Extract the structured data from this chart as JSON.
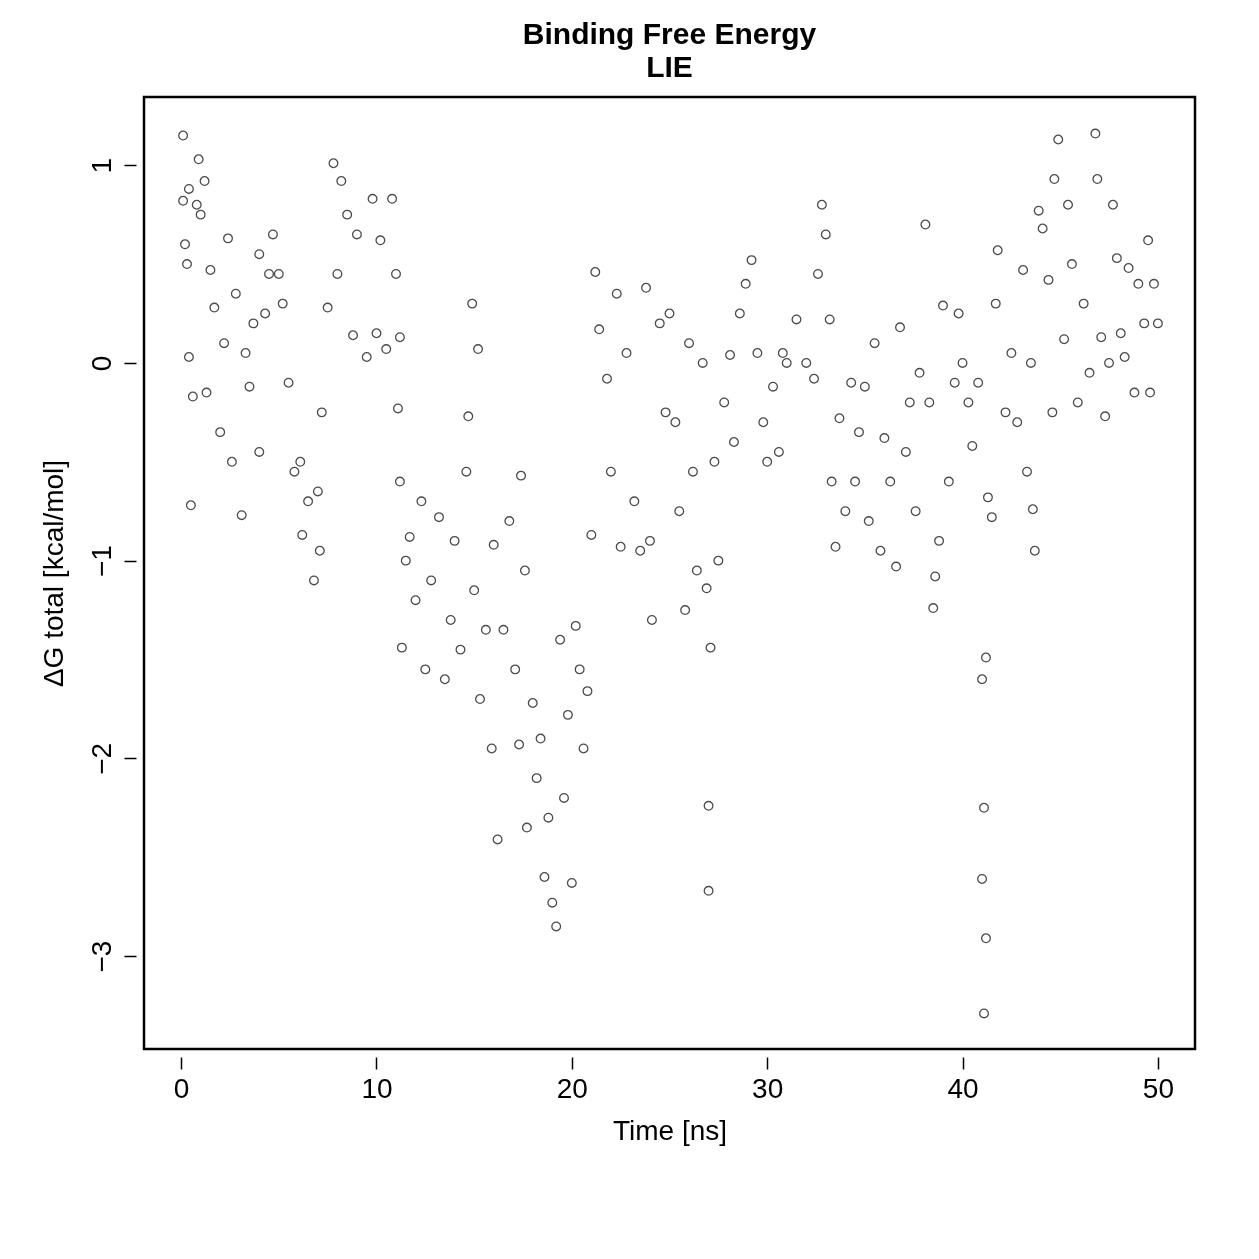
{
  "chart_data": {
    "type": "scatter",
    "title": "Binding Free Energy",
    "subtitle": "LIE",
    "xlabel": "Time [ns]",
    "ylabel": "ΔG total [kcal/mol]",
    "xlim": [
      -1.9,
      51.9
    ],
    "ylim": [
      -3.47,
      1.345
    ],
    "xticks": [
      0,
      10,
      20,
      30,
      40,
      50
    ],
    "yticks": [
      -3,
      -2,
      -1,
      0,
      1
    ],
    "grid": false,
    "marker": "circle",
    "series": [
      {
        "color": "#000000",
        "x": [
          0.1,
          0.1,
          0.2,
          0.3,
          0.4,
          0.4,
          0.5,
          0.6,
          0.8,
          0.9,
          1.0,
          1.2,
          1.3,
          1.5,
          1.7,
          2.0,
          2.2,
          2.4,
          2.6,
          2.8,
          3.1,
          3.3,
          3.5,
          3.7,
          4.0,
          4.0,
          4.3,
          4.5,
          4.7,
          5.0,
          5.2,
          5.5,
          5.8,
          6.1,
          6.2,
          6.5,
          6.8,
          7.0,
          7.1,
          7.2,
          7.5,
          7.8,
          8.0,
          8.2,
          8.5,
          8.8,
          9.0,
          9.5,
          9.8,
          10.0,
          10.2,
          10.5,
          10.8,
          11.0,
          11.2,
          11.1,
          11.2,
          11.3,
          11.5,
          11.7,
          12.0,
          12.3,
          12.5,
          12.8,
          13.2,
          13.5,
          13.8,
          14.0,
          14.3,
          14.6,
          14.7,
          14.9,
          15.0,
          15.2,
          15.3,
          15.6,
          15.9,
          16.0,
          16.2,
          16.5,
          16.8,
          17.1,
          17.3,
          17.4,
          17.6,
          17.7,
          18.0,
          18.2,
          18.4,
          18.6,
          18.8,
          19.0,
          19.2,
          19.4,
          19.6,
          19.8,
          20.0,
          20.2,
          20.4,
          20.6,
          20.8,
          21.0,
          21.2,
          21.4,
          21.8,
          22.0,
          22.3,
          22.5,
          22.8,
          23.2,
          23.5,
          23.8,
          24.0,
          24.1,
          24.5,
          24.8,
          25.0,
          25.3,
          25.5,
          25.8,
          26.0,
          26.2,
          26.4,
          26.7,
          26.9,
          27.0,
          27.0,
          27.1,
          27.3,
          27.5,
          27.8,
          28.1,
          28.3,
          28.6,
          28.9,
          29.2,
          29.5,
          29.8,
          30.0,
          30.3,
          30.6,
          30.8,
          31.0,
          31.5,
          32.0,
          32.4,
          32.6,
          32.8,
          33.0,
          33.2,
          33.3,
          33.5,
          33.7,
          34.0,
          34.3,
          34.5,
          34.7,
          35.0,
          35.2,
          35.5,
          35.8,
          36.0,
          36.3,
          36.6,
          36.8,
          37.1,
          37.3,
          37.6,
          37.8,
          38.1,
          38.3,
          38.5,
          38.6,
          38.8,
          39.0,
          39.3,
          39.6,
          39.8,
          40.0,
          40.3,
          40.5,
          40.8,
          41.0,
          41.1,
          41.0,
          41.2,
          41.1,
          41.2,
          41.3,
          41.5,
          41.7,
          41.8,
          42.2,
          42.5,
          42.8,
          43.1,
          43.3,
          43.5,
          43.6,
          43.7,
          43.9,
          44.1,
          44.4,
          44.6,
          44.7,
          44.9,
          45.2,
          45.4,
          45.6,
          45.9,
          46.2,
          46.5,
          46.8,
          46.9,
          47.1,
          47.3,
          47.5,
          47.7,
          47.9,
          48.1,
          48.3,
          48.5,
          48.8,
          49.0,
          49.3,
          49.5,
          49.6,
          49.8,
          50.0
        ],
        "values": [
          1.15,
          0.82,
          0.6,
          0.5,
          0.88,
          0.03,
          -0.72,
          -0.17,
          0.8,
          1.03,
          0.75,
          0.92,
          -0.15,
          0.47,
          0.28,
          -0.35,
          0.1,
          0.63,
          -0.5,
          0.35,
          -0.77,
          0.05,
          -0.12,
          0.2,
          -0.45,
          0.55,
          0.25,
          0.45,
          0.65,
          0.45,
          0.3,
          -0.1,
          -0.55,
          -0.5,
          -0.87,
          -0.7,
          -1.1,
          -0.65,
          -0.95,
          -0.25,
          0.28,
          1.01,
          0.45,
          0.92,
          0.75,
          0.14,
          0.65,
          0.03,
          0.83,
          0.15,
          0.62,
          0.07,
          0.83,
          0.45,
          0.13,
          -0.23,
          -0.6,
          -1.44,
          -1.0,
          -0.88,
          -1.2,
          -0.7,
          -1.55,
          -1.1,
          -0.78,
          -1.6,
          -1.3,
          -0.9,
          -1.45,
          -0.55,
          -0.27,
          0.3,
          -1.15,
          0.07,
          -1.7,
          -1.35,
          -1.95,
          -0.92,
          -2.41,
          -1.35,
          -0.8,
          -1.55,
          -1.93,
          -0.57,
          -1.05,
          -2.35,
          -1.72,
          -2.1,
          -1.9,
          -2.6,
          -2.3,
          -2.73,
          -2.85,
          -1.4,
          -2.2,
          -1.78,
          -2.63,
          -1.33,
          -1.55,
          -1.95,
          -1.66,
          -0.87,
          0.46,
          0.17,
          -0.08,
          -0.55,
          0.35,
          -0.93,
          0.05,
          -0.7,
          -0.95,
          0.38,
          -0.9,
          -1.3,
          0.2,
          -0.25,
          0.25,
          -0.3,
          -0.75,
          -1.25,
          0.1,
          -0.55,
          -1.05,
          0.0,
          -1.14,
          -2.24,
          -2.67,
          -1.44,
          -0.5,
          -1.0,
          -0.2,
          0.04,
          -0.4,
          0.25,
          0.4,
          0.52,
          0.05,
          -0.3,
          -0.5,
          -0.12,
          -0.45,
          0.05,
          0.0,
          0.22,
          0.0,
          -0.08,
          0.45,
          0.8,
          0.65,
          0.22,
          -0.6,
          -0.93,
          -0.28,
          -0.75,
          -0.1,
          -0.6,
          -0.35,
          -0.12,
          -0.8,
          0.1,
          -0.95,
          -0.38,
          -0.6,
          -1.03,
          0.18,
          -0.45,
          -0.2,
          -0.75,
          -0.05,
          0.7,
          -0.2,
          -1.24,
          -1.08,
          -0.9,
          0.29,
          -0.6,
          -0.1,
          0.25,
          0.0,
          -0.2,
          -0.42,
          -0.1,
          -1.6,
          -2.25,
          -2.61,
          -2.91,
          -3.29,
          -1.49,
          -0.68,
          -0.78,
          0.3,
          0.57,
          -0.25,
          0.05,
          -0.3,
          0.47,
          -0.55,
          0.0,
          -0.74,
          -0.95,
          0.77,
          0.68,
          0.42,
          -0.25,
          0.93,
          1.13,
          0.12,
          0.8,
          0.5,
          -0.2,
          0.3,
          -0.05,
          1.16,
          0.93,
          0.13,
          -0.27,
          0.0,
          0.8,
          0.53,
          0.15,
          0.03,
          0.48,
          -0.15,
          0.4,
          0.2,
          0.62,
          -0.15,
          0.4,
          0.2
        ]
      }
    ]
  }
}
